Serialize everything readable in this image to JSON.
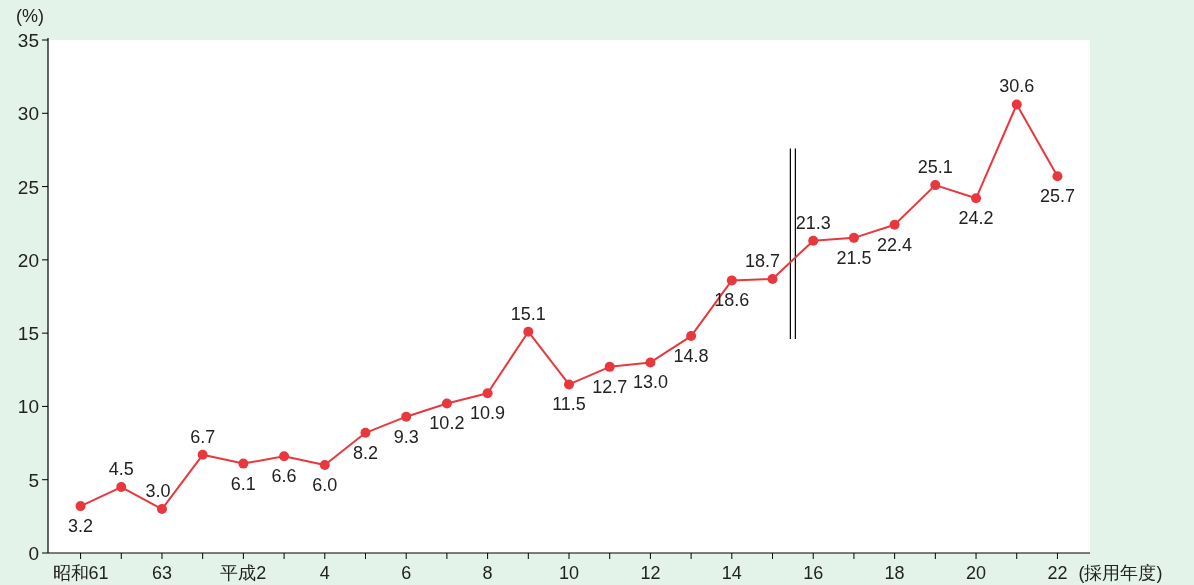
{
  "chart_data": {
    "type": "line",
    "ylabel": "(%)",
    "xlabel": "(採用年度)",
    "categories": [
      "昭和61",
      null,
      "63",
      null,
      "平成2",
      null,
      "4",
      null,
      "6",
      null,
      "8",
      null,
      "10",
      null,
      "12",
      null,
      "14",
      null,
      "16",
      null,
      "18",
      null,
      "20",
      null,
      "22"
    ],
    "series": [
      {
        "color": "#e8383d",
        "values": [
          3.2,
          4.5,
          3.0,
          6.7,
          6.1,
          6.6,
          6.0,
          8.2,
          9.3,
          10.2,
          10.9,
          15.1,
          11.5,
          12.7,
          13.0,
          14.8,
          18.6,
          18.7,
          21.3,
          21.5,
          22.4,
          25.1,
          24.2,
          30.6,
          25.7
        ],
        "value_labels": [
          "3.2",
          "4.5",
          "3.0",
          "6.7",
          "6.1",
          "6.6",
          "6.0",
          "8.2",
          "9.3",
          "10.2",
          "10.9",
          "15.1",
          "11.5",
          "12.7",
          "13.0",
          "14.8",
          "18.6",
          "18.7",
          "21.3",
          "21.5",
          "22.4",
          "25.1",
          "24.2",
          "30.6",
          "25.7"
        ]
      }
    ],
    "ylim": [
      0,
      35
    ],
    "yticks": [
      0,
      5,
      10,
      15,
      20,
      25,
      30,
      35
    ],
    "marker": "circle",
    "line_style": "solid",
    "grid": false
  }
}
